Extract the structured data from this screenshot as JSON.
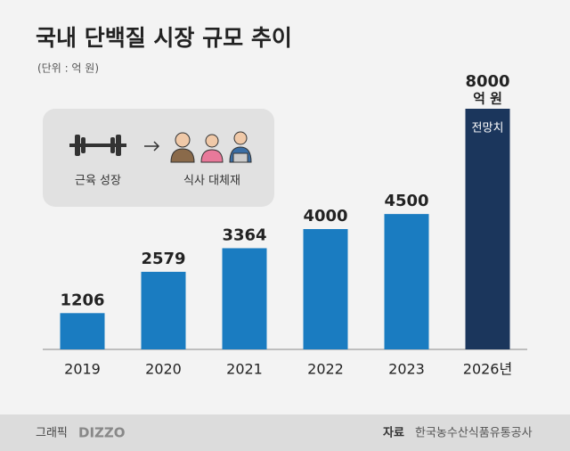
{
  "chart_data": {
    "type": "bar",
    "title": "국내 단백질 시장 규모 추이",
    "subtitle": "(단위 : 억 원)",
    "categories": [
      "2019",
      "2020",
      "2021",
      "2022",
      "2023",
      "2026년"
    ],
    "values": [
      1206,
      2579,
      3364,
      4000,
      4500,
      8000
    ],
    "colors": [
      "#1a7cc1",
      "#1a7cc1",
      "#1a7cc1",
      "#1a7cc1",
      "#1a7cc1",
      "#1b365c"
    ],
    "last_value_unit": "억 원",
    "forecast_label": "전망치",
    "inset": {
      "from": "근육 성장",
      "to": "식사 대체재"
    },
    "footer": {
      "graphic_label": "그래픽",
      "graphic_brand": "DIZZO",
      "source_label": "자료",
      "source": "한국농수산식품유통공사"
    }
  }
}
